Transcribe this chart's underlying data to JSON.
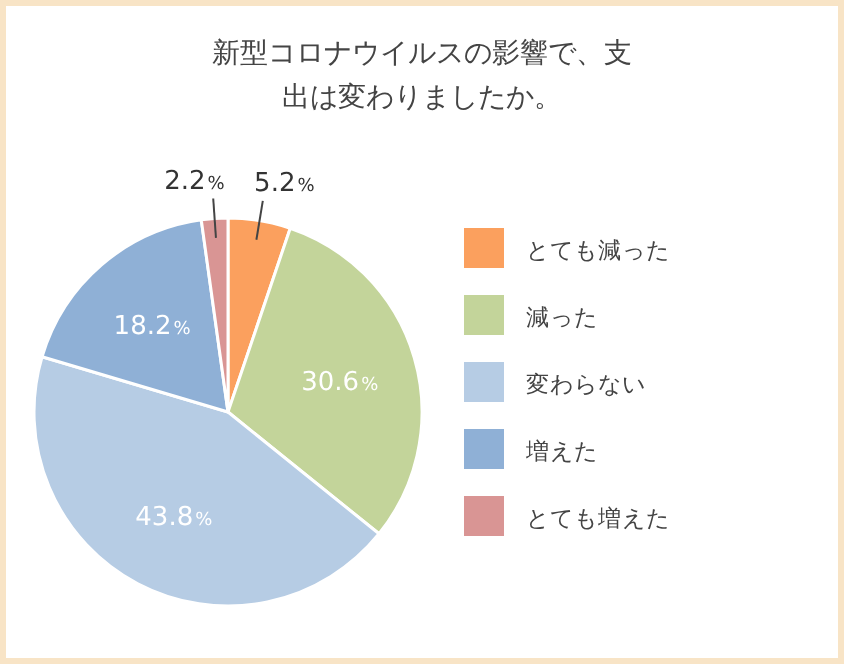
{
  "chart_data": {
    "type": "pie",
    "title": "新型コロナウイルスの影響で、支出は変わりましたか。",
    "categories": [
      "とても減った",
      "減った",
      "変わらない",
      "増えた",
      "とても増えた"
    ],
    "values": [
      5.2,
      30.6,
      43.8,
      18.2,
      2.2
    ],
    "colors": [
      "#fba05e",
      "#c3d49a",
      "#b6cce4",
      "#8fb0d6",
      "#d99594"
    ],
    "value_labels": [
      "5.2%",
      "30.6%",
      "43.8%",
      "18.2%",
      "2.2%"
    ],
    "legend": "right"
  }
}
